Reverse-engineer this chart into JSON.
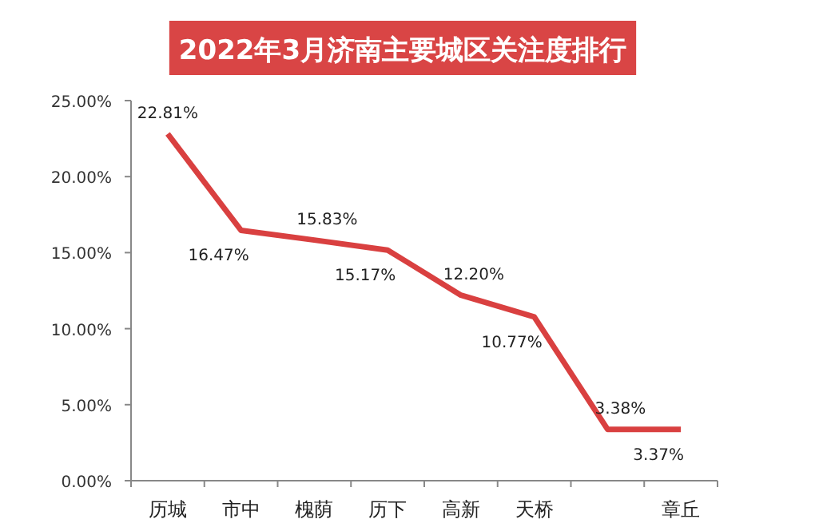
{
  "chart_data": {
    "type": "line",
    "title": "2022年3月济南主要城区关注度排行",
    "categories": [
      "历城",
      "市中",
      "槐荫",
      "历下",
      "高新",
      "天桥",
      null,
      "章丘"
    ],
    "series": [
      {
        "color": "#d94040",
        "values": [
          22.81,
          16.47,
          15.83,
          15.17,
          12.2,
          10.77,
          3.38,
          3.37
        ],
        "value_labels": [
          "22.81%",
          "16.47%",
          "15.83%",
          "15.17%",
          "12.20%",
          "10.77%",
          "3.38%",
          "3.37%"
        ]
      }
    ],
    "ylim": [
      0,
      25
    ],
    "yticks": [
      {
        "value": 0,
        "label": "0.00%"
      },
      {
        "value": 5,
        "label": "5.00%"
      },
      {
        "value": 10,
        "label": "10.00%"
      },
      {
        "value": 15,
        "label": "15.00%"
      },
      {
        "value": 20,
        "label": "20.00%"
      },
      {
        "value": 25,
        "label": "25.00%"
      }
    ],
    "grid": false,
    "marker": "none",
    "line_style": "solid"
  }
}
